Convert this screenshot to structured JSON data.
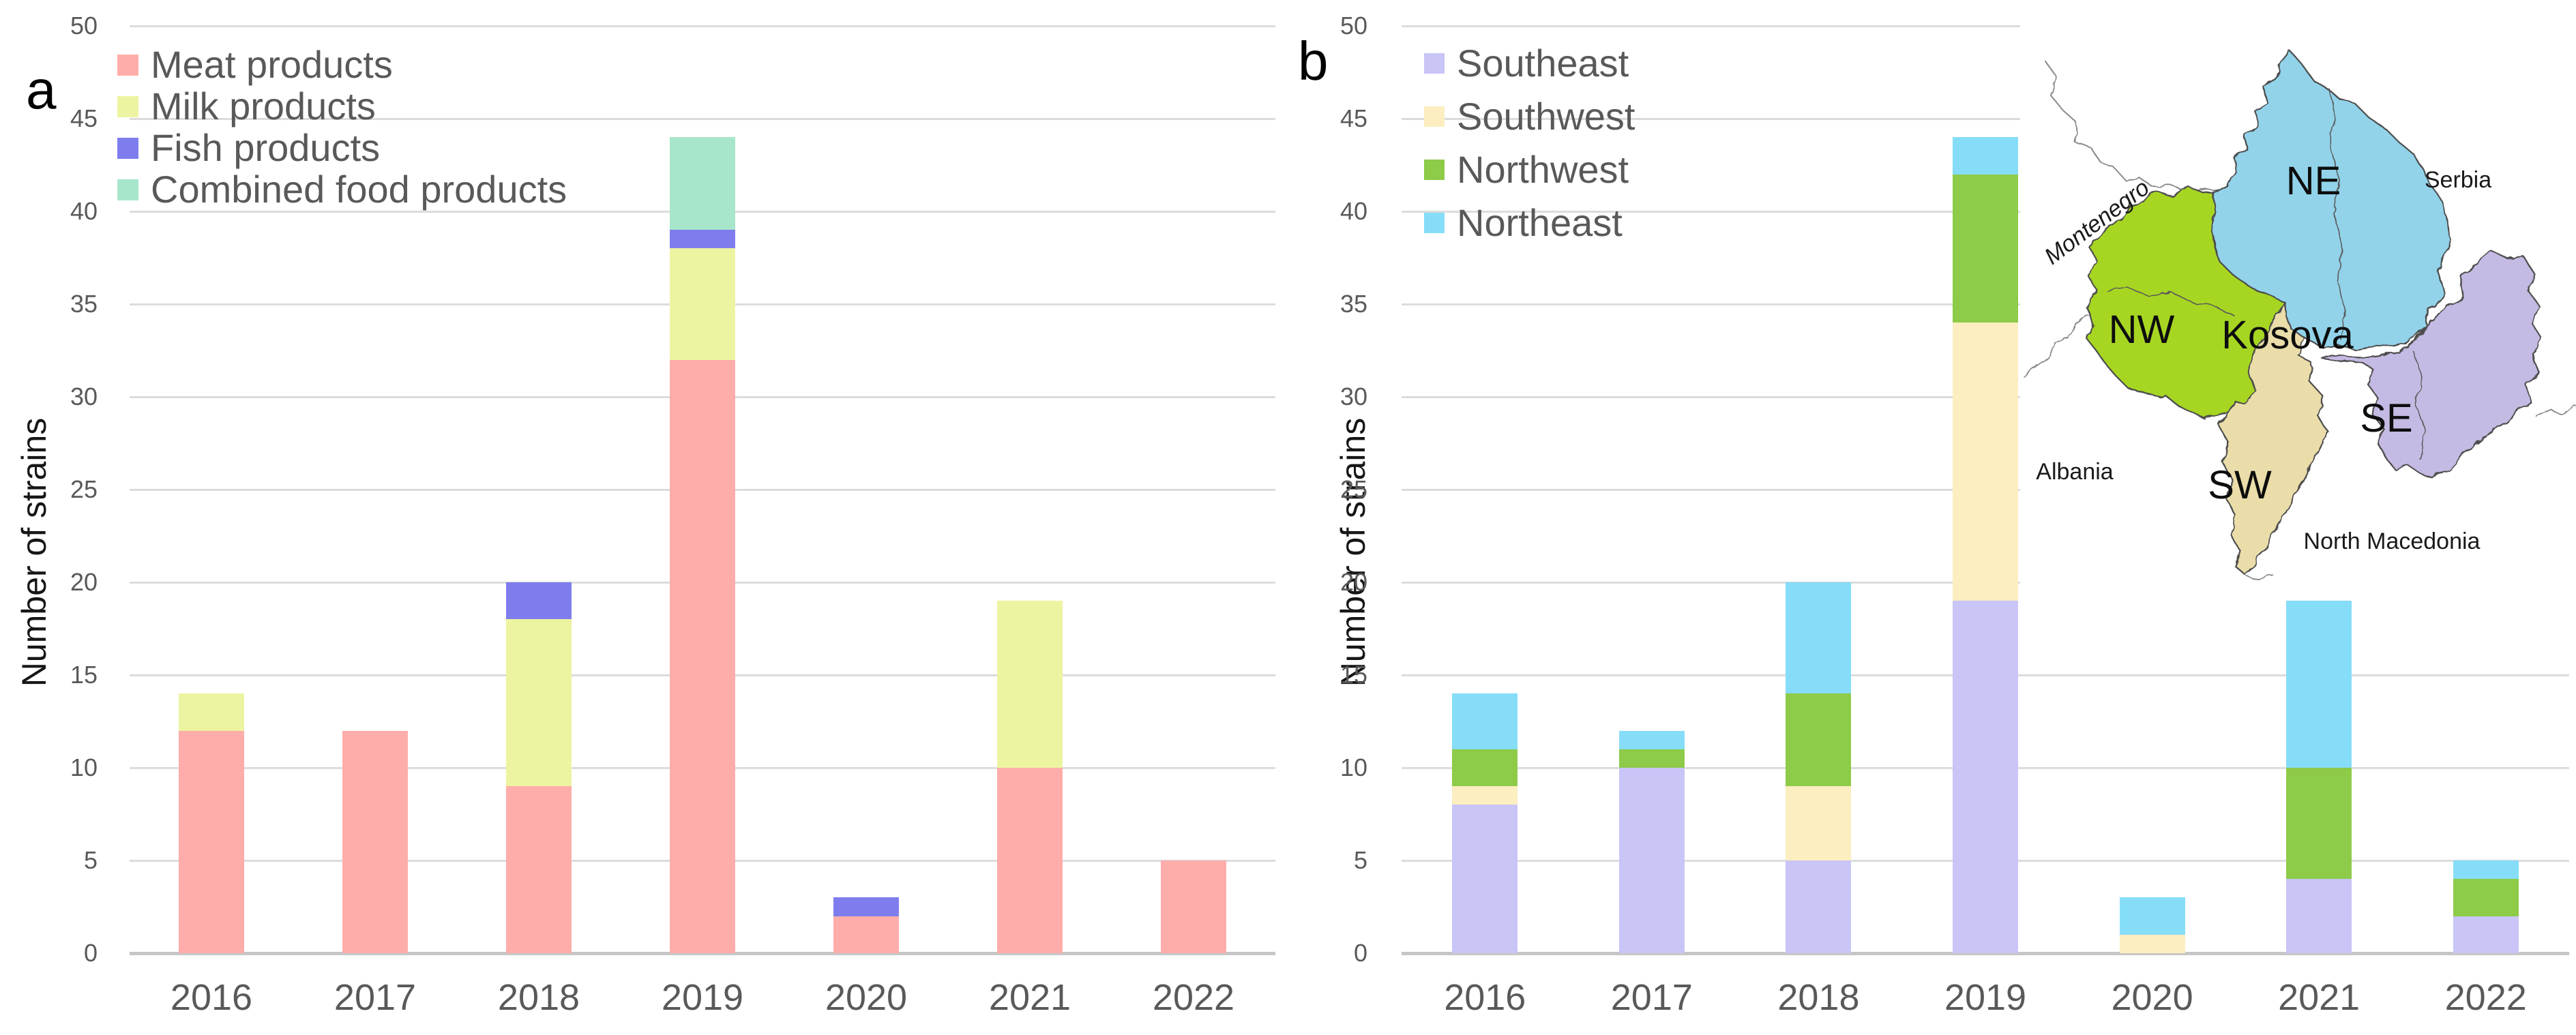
{
  "figure_title": "",
  "panels": {
    "a": {
      "letter": "a",
      "ylabel": "Number of strains"
    },
    "b": {
      "letter": "b",
      "ylabel": "Number of strains"
    }
  },
  "chart_data": [
    {
      "panel": "a",
      "type": "bar",
      "stacked": true,
      "title": "",
      "xlabel": "",
      "ylabel": "Number of strains",
      "ylim": [
        0,
        50
      ],
      "ytick_step": 5,
      "grid": true,
      "legend_position": "top-left",
      "categories": [
        "2016",
        "2017",
        "2018",
        "2019",
        "2020",
        "2021",
        "2022"
      ],
      "series": [
        {
          "name": "Meat products",
          "color": "#FFADAB",
          "values": [
            12,
            12,
            9,
            32,
            2,
            10,
            5
          ]
        },
        {
          "name": "Milk products",
          "color": "#EDF4A1",
          "values": [
            2,
            0,
            9,
            6,
            0,
            9,
            0
          ]
        },
        {
          "name": "Fish products",
          "color": "#7F7DEE",
          "values": [
            0,
            0,
            2,
            1,
            1,
            0,
            0
          ]
        },
        {
          "name": "Combined food products",
          "color": "#A7E6CB",
          "values": [
            0,
            0,
            0,
            5,
            0,
            0,
            0
          ]
        }
      ],
      "totals": [
        14,
        12,
        20,
        44,
        3,
        19,
        5
      ]
    },
    {
      "panel": "b",
      "type": "bar",
      "stacked": true,
      "title": "",
      "xlabel": "",
      "ylabel": "Number of strains",
      "ylim": [
        0,
        50
      ],
      "ytick_step": 5,
      "grid": true,
      "legend_position": "top-left",
      "categories": [
        "2016",
        "2017",
        "2018",
        "2019",
        "2020",
        "2021",
        "2022"
      ],
      "series": [
        {
          "name": "Southeast",
          "color": "#C9C5F6",
          "values": [
            8,
            10,
            5,
            19,
            0,
            4,
            2
          ]
        },
        {
          "name": "Southwest",
          "color": "#FCEEC0",
          "values": [
            1,
            0,
            4,
            15,
            1,
            0,
            0
          ]
        },
        {
          "name": "Northwest",
          "color": "#8DCB49",
          "values": [
            2,
            1,
            5,
            8,
            0,
            6,
            2
          ]
        },
        {
          "name": "Northeast",
          "color": "#86DDF8",
          "values": [
            3,
            1,
            6,
            2,
            2,
            9,
            1
          ]
        }
      ],
      "totals": [
        14,
        12,
        20,
        44,
        3,
        19,
        5
      ]
    }
  ],
  "map": {
    "region_ne": "NE",
    "region_nw": "NW",
    "region_se": "SE",
    "region_sw": "SW",
    "country_center": "Kosova",
    "country_serbia": "Serbia",
    "country_montenegro": "Montenegro",
    "country_albania": "Albania",
    "country_north_macedonia": "North Macedonia",
    "colors": {
      "ne_fill": "#92D3EA",
      "nw_fill": "#A7D622",
      "se_fill": "#C5BAE3",
      "sw_fill": "#EADDA9",
      "border": "#4d4d4d",
      "country_border": "#8a8a8a"
    }
  }
}
